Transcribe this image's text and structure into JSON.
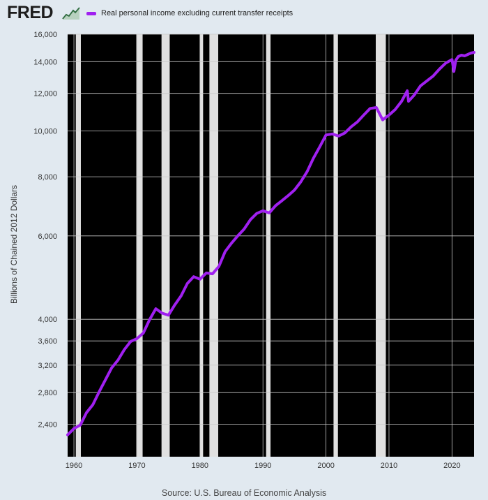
{
  "header": {
    "logo_text": "FRED",
    "logo_icon": "line-chart-icon"
  },
  "source": "Source: U.S. Bureau of Economic Analysis",
  "colors": {
    "series": "#a020f0",
    "plot_background": "#000000",
    "recession": "#e0e0e0",
    "page_background": "#e1e9f0"
  },
  "chart_data": {
    "type": "line",
    "title": "",
    "xlabel": "",
    "ylabel": "Billions of Chained 2012 Dollars",
    "yscale": "log",
    "xlim": [
      1959,
      2023.5
    ],
    "ylim": [
      2050,
      16000
    ],
    "grid": true,
    "legend_position": "top-left",
    "x_ticks": [
      "1960",
      "1970",
      "1980",
      "1990",
      "2000",
      "2010",
      "2020"
    ],
    "y_ticks": [
      "2,400",
      "2,800",
      "3,200",
      "3,600",
      "4,000",
      "6,000",
      "8,000",
      "10,000",
      "12,000",
      "14,000",
      "16,000"
    ],
    "recessions": [
      [
        1960.3,
        1961.1
      ],
      [
        1969.9,
        1970.9
      ],
      [
        1973.9,
        1975.2
      ],
      [
        1980.0,
        1980.5
      ],
      [
        1981.5,
        1982.9
      ],
      [
        1990.5,
        1991.2
      ],
      [
        2001.2,
        2001.9
      ],
      [
        2007.9,
        2009.5
      ]
    ],
    "series": [
      {
        "name": "Real personal income excluding current transfer receipts",
        "points": [
          [
            1959.0,
            2280
          ],
          [
            1960.0,
            2350
          ],
          [
            1961.0,
            2390
          ],
          [
            1962.0,
            2540
          ],
          [
            1963.0,
            2640
          ],
          [
            1964.0,
            2810
          ],
          [
            1965.0,
            2980
          ],
          [
            1966.0,
            3160
          ],
          [
            1967.0,
            3280
          ],
          [
            1968.0,
            3450
          ],
          [
            1969.0,
            3590
          ],
          [
            1970.0,
            3640
          ],
          [
            1971.0,
            3740
          ],
          [
            1972.0,
            3990
          ],
          [
            1973.0,
            4210
          ],
          [
            1974.0,
            4120
          ],
          [
            1975.0,
            4080
          ],
          [
            1976.0,
            4290
          ],
          [
            1977.0,
            4480
          ],
          [
            1978.0,
            4760
          ],
          [
            1979.0,
            4920
          ],
          [
            1980.0,
            4860
          ],
          [
            1981.0,
            5010
          ],
          [
            1982.0,
            4990
          ],
          [
            1983.0,
            5170
          ],
          [
            1984.0,
            5560
          ],
          [
            1985.0,
            5790
          ],
          [
            1986.0,
            6000
          ],
          [
            1987.0,
            6200
          ],
          [
            1988.0,
            6490
          ],
          [
            1989.0,
            6690
          ],
          [
            1990.0,
            6780
          ],
          [
            1991.0,
            6710
          ],
          [
            1992.0,
            6950
          ],
          [
            1993.0,
            7120
          ],
          [
            1994.0,
            7300
          ],
          [
            1995.0,
            7500
          ],
          [
            1996.0,
            7800
          ],
          [
            1997.0,
            8200
          ],
          [
            1998.0,
            8750
          ],
          [
            1999.0,
            9250
          ],
          [
            2000.0,
            9800
          ],
          [
            2001.0,
            9850
          ],
          [
            2002.0,
            9750
          ],
          [
            2003.0,
            9900
          ],
          [
            2004.0,
            10200
          ],
          [
            2005.0,
            10450
          ],
          [
            2006.0,
            10800
          ],
          [
            2007.0,
            11150
          ],
          [
            2008.0,
            11200
          ],
          [
            2009.0,
            10550
          ],
          [
            2010.0,
            10800
          ],
          [
            2011.0,
            11100
          ],
          [
            2012.0,
            11550
          ],
          [
            2012.9,
            12150
          ],
          [
            2013.1,
            11550
          ],
          [
            2014.0,
            11900
          ],
          [
            2015.0,
            12450
          ],
          [
            2016.0,
            12750
          ],
          [
            2017.0,
            13050
          ],
          [
            2018.0,
            13500
          ],
          [
            2019.0,
            13900
          ],
          [
            2020.0,
            14150
          ],
          [
            2020.3,
            13350
          ],
          [
            2020.6,
            14100
          ],
          [
            2021.0,
            14350
          ],
          [
            2021.5,
            14450
          ],
          [
            2022.0,
            14400
          ],
          [
            2022.5,
            14500
          ],
          [
            2023.0,
            14600
          ],
          [
            2023.5,
            14650
          ]
        ]
      }
    ]
  }
}
